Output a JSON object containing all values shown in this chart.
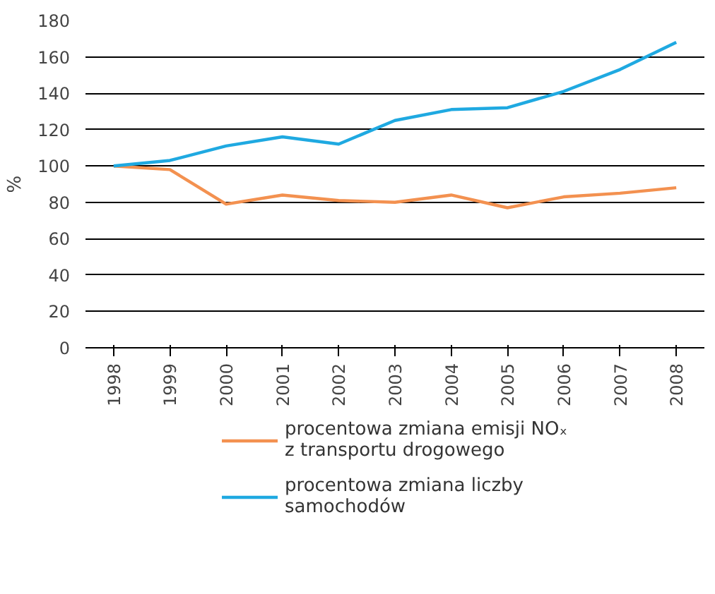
{
  "chart_data": {
    "type": "line",
    "ylabel": "%",
    "categories": [
      "1998",
      "1999",
      "2000",
      "2001",
      "2002",
      "2003",
      "2004",
      "2005",
      "2006",
      "2007",
      "2008"
    ],
    "series": [
      {
        "name": "procentowa zmiana emisji NOₓ z transportu drogowego",
        "color": "#f39150",
        "values": [
          100,
          98,
          79,
          84,
          81,
          80,
          84,
          77,
          83,
          85,
          88
        ]
      },
      {
        "name": "procentowa zmiana liczby samochodów",
        "color": "#1fa9e1",
        "values": [
          100,
          103,
          111,
          116,
          112,
          125,
          131,
          132,
          141,
          153,
          168
        ]
      }
    ],
    "ylim": [
      0,
      180
    ],
    "yticks": [
      0,
      20,
      40,
      60,
      80,
      100,
      120,
      140,
      160,
      180
    ],
    "grid": "y",
    "legend": "bottom"
  }
}
